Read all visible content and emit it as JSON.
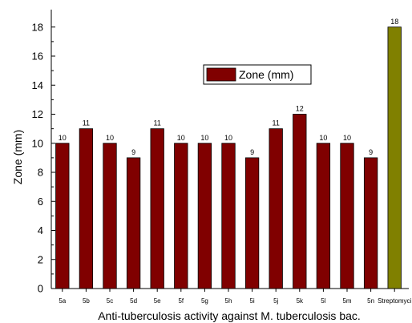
{
  "chart_data": {
    "type": "bar",
    "categories": [
      "5a",
      "5b",
      "5c",
      "5d",
      "5e",
      "5f",
      "5g",
      "5h",
      "5i",
      "5j",
      "5k",
      "5l",
      "5m",
      "5n",
      "Streptomyci"
    ],
    "series": [
      {
        "name": "Zone (mm)",
        "values": [
          10,
          11,
          10,
          9,
          11,
          10,
          10,
          10,
          9,
          11,
          12,
          10,
          10,
          9,
          18
        ],
        "data_labels": [
          "10",
          "11",
          "10",
          "9",
          "11",
          "10",
          "10",
          "10",
          "9",
          "11",
          "12",
          "10",
          "10",
          "9",
          "18"
        ]
      }
    ],
    "bar_colors": [
      "#800000",
      "#800000",
      "#800000",
      "#800000",
      "#800000",
      "#800000",
      "#800000",
      "#800000",
      "#800000",
      "#800000",
      "#800000",
      "#800000",
      "#800000",
      "#800000",
      "#808000"
    ],
    "xlabel": "Anti-tuberculosis activity against M. tuberculosis bac.",
    "ylabel": "Zone (mm)",
    "ylim": [
      0,
      19.2
    ],
    "yticks": [
      0,
      2,
      4,
      6,
      8,
      10,
      12,
      14,
      16,
      18
    ],
    "ytick_labels": [
      "0",
      "2",
      "4",
      "6",
      "8",
      "10",
      "12",
      "14",
      "16",
      "18"
    ],
    "legend": {
      "label": "Zone (mm)",
      "placement": "center",
      "swatch_color": "#800000"
    },
    "grid": false
  }
}
